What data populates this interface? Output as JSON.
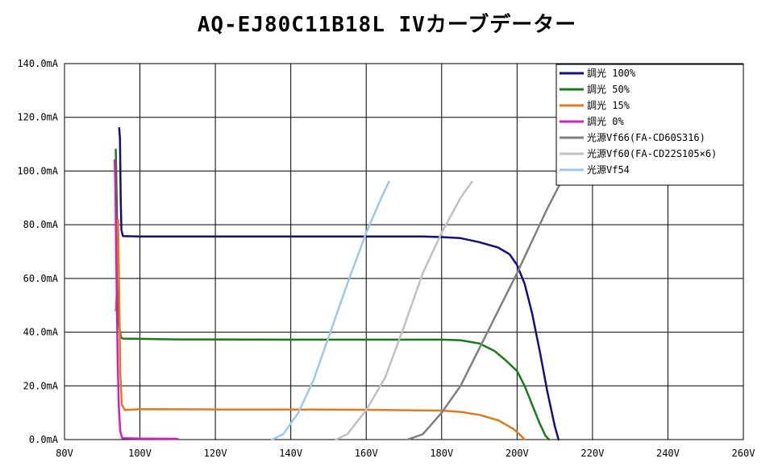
{
  "chart_data": {
    "type": "line",
    "title": "AQ-EJ80C11B18L IVカーブデーター",
    "xlabel": "",
    "ylabel": "",
    "xlim": [
      80,
      260
    ],
    "ylim": [
      0,
      140
    ],
    "x_ticks": [
      "80V",
      "100V",
      "120V",
      "140V",
      "160V",
      "180V",
      "200V",
      "220V",
      "240V",
      "260V"
    ],
    "y_ticks": [
      "0.0mA",
      "20.0mA",
      "40.0mA",
      "60.0mA",
      "80.0mA",
      "100.0mA",
      "120.0mA",
      "140.0mA"
    ],
    "grid": true,
    "legend_position": "top-right",
    "series": [
      {
        "name": "調光 100%",
        "color": "#10107f",
        "points": [
          [
            94.5,
            116
          ],
          [
            94.7,
            112
          ],
          [
            94.9,
            90
          ],
          [
            95.1,
            78
          ],
          [
            95.5,
            75.8
          ],
          [
            100,
            75.6
          ],
          [
            120,
            75.6
          ],
          [
            140,
            75.6
          ],
          [
            160,
            75.6
          ],
          [
            175,
            75.6
          ],
          [
            180,
            75.4
          ],
          [
            185,
            75
          ],
          [
            190,
            73.5
          ],
          [
            195,
            71.5
          ],
          [
            198,
            69
          ],
          [
            200,
            65
          ],
          [
            202,
            58
          ],
          [
            204,
            47
          ],
          [
            206,
            33
          ],
          [
            208,
            18
          ],
          [
            210,
            5
          ],
          [
            211,
            0
          ]
        ]
      },
      {
        "name": "調光 50%",
        "color": "#1a7a1a",
        "points": [
          [
            93.6,
            108
          ],
          [
            93.9,
            85
          ],
          [
            94.2,
            55
          ],
          [
            94.5,
            42
          ],
          [
            95,
            38
          ],
          [
            95.5,
            37.6
          ],
          [
            100,
            37.5
          ],
          [
            110,
            37.3
          ],
          [
            140,
            37.2
          ],
          [
            160,
            37.2
          ],
          [
            180,
            37.2
          ],
          [
            185,
            37
          ],
          [
            190,
            35.8
          ],
          [
            194,
            33
          ],
          [
            197,
            29.5
          ],
          [
            200,
            25.5
          ],
          [
            202,
            20
          ],
          [
            204,
            13
          ],
          [
            206,
            6
          ],
          [
            207.5,
            1.5
          ],
          [
            208.5,
            0
          ]
        ]
      },
      {
        "name": "調光 15%",
        "color": "#e07a1e",
        "points": [
          [
            93.6,
            48
          ],
          [
            93.9,
            55
          ],
          [
            94.2,
            82
          ],
          [
            94.5,
            55
          ],
          [
            94.8,
            25
          ],
          [
            95.2,
            13
          ],
          [
            96,
            11
          ],
          [
            100,
            11.3
          ],
          [
            120,
            11.2
          ],
          [
            140,
            11.2
          ],
          [
            160,
            11.1
          ],
          [
            180,
            10.8
          ],
          [
            185,
            10.3
          ],
          [
            190,
            9.2
          ],
          [
            195,
            7.2
          ],
          [
            199,
            4
          ],
          [
            201,
            1.5
          ],
          [
            202,
            0
          ]
        ]
      },
      {
        "name": "調光 0%",
        "color": "#d020c0",
        "points": [
          [
            93.3,
            104
          ],
          [
            93.5,
            93
          ],
          [
            93.7,
            70
          ],
          [
            93.9,
            50
          ],
          [
            94.1,
            28
          ],
          [
            94.4,
            12
          ],
          [
            94.8,
            3
          ],
          [
            95.3,
            0.5
          ],
          [
            100,
            0.4
          ],
          [
            110,
            0.3
          ]
        ]
      },
      {
        "name": "光源Vf66(FA-CD60S316)",
        "color": "#7f7f7f",
        "points": [
          [
            171,
            0
          ],
          [
            175,
            2
          ],
          [
            180,
            10
          ],
          [
            185,
            20
          ],
          [
            190,
            34
          ],
          [
            195,
            48
          ],
          [
            200,
            62
          ],
          [
            205,
            77
          ],
          [
            208,
            86
          ],
          [
            211.5,
            95.5
          ]
        ]
      },
      {
        "name": "光源Vf60(FA-CD22S105×6)",
        "color": "#c0c0c0",
        "points": [
          [
            152,
            0
          ],
          [
            155,
            2
          ],
          [
            160,
            11
          ],
          [
            165,
            23
          ],
          [
            170,
            42
          ],
          [
            175,
            62
          ],
          [
            180,
            77
          ],
          [
            185,
            90
          ],
          [
            188,
            96
          ]
        ]
      },
      {
        "name": "光源Vf54",
        "color": "#9cc8e8",
        "points": [
          [
            135,
            0
          ],
          [
            138,
            2
          ],
          [
            142,
            10
          ],
          [
            146,
            22
          ],
          [
            150,
            38
          ],
          [
            155,
            58
          ],
          [
            160,
            77
          ],
          [
            164,
            90
          ],
          [
            166,
            96
          ]
        ]
      }
    ]
  }
}
